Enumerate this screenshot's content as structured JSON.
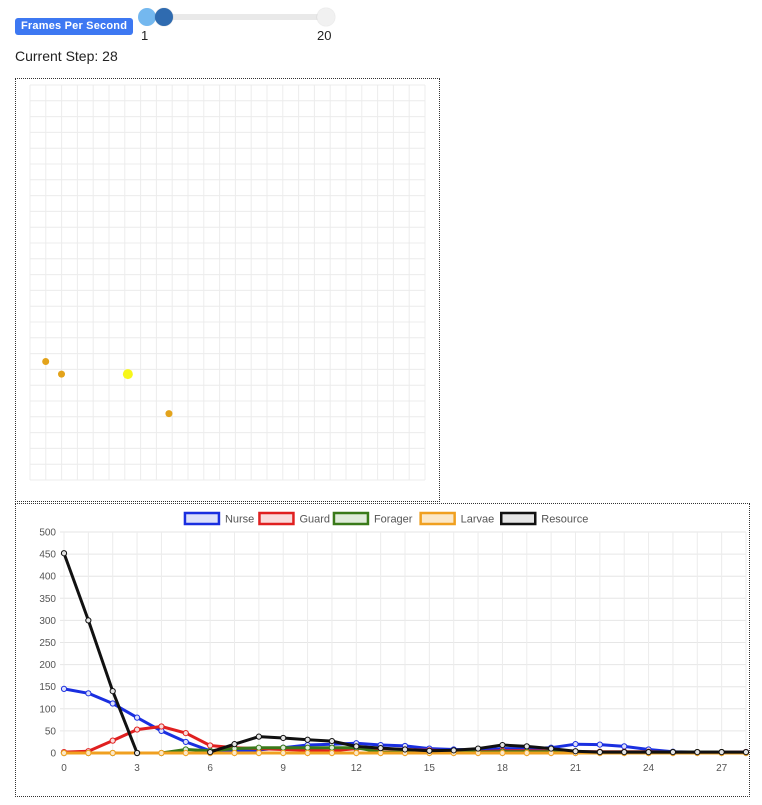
{
  "controls": {
    "fps_label": "Frames Per Second",
    "fps_min_label": "1",
    "fps_max_label": "20",
    "fps_min": 1,
    "fps_max": 20,
    "fps_value": 2,
    "step_label": "Current Step: 28"
  },
  "grid": {
    "cells": 25,
    "agents": [
      {
        "col": 1,
        "row": 17.5,
        "color": "#e3a31b",
        "role": "dot"
      },
      {
        "col": 2,
        "row": 18.3,
        "color": "#e3a31b",
        "role": "dot"
      },
      {
        "col": 6.2,
        "row": 18.3,
        "color": "#f7f71a",
        "role": "dot-large"
      },
      {
        "col": 8.8,
        "row": 20.8,
        "color": "#e3a31b",
        "role": "dot"
      }
    ]
  },
  "chart_data": {
    "type": "line",
    "x": [
      0,
      1,
      2,
      3,
      4,
      5,
      6,
      7,
      8,
      9,
      10,
      11,
      12,
      13,
      14,
      15,
      16,
      17,
      18,
      19,
      20,
      21,
      22,
      23,
      24,
      25,
      26,
      27,
      28
    ],
    "xticks": [
      0,
      3,
      6,
      9,
      12,
      15,
      18,
      21,
      24,
      27
    ],
    "ylim": [
      0,
      500
    ],
    "yticks": [
      0,
      50,
      100,
      150,
      200,
      250,
      300,
      350,
      400,
      450,
      500
    ],
    "grid": true,
    "legend": "top-center",
    "series": [
      {
        "name": "Nurse",
        "color": "#1a2fe0",
        "fill": "#dde0fa",
        "values": [
          145,
          135,
          112,
          80,
          50,
          25,
          5,
          5,
          7,
          12,
          18,
          20,
          22,
          18,
          16,
          10,
          8,
          7,
          10,
          10,
          12,
          20,
          19,
          15,
          8,
          3,
          2,
          2,
          2
        ]
      },
      {
        "name": "Guard",
        "color": "#e02020",
        "fill": "#f9dcdc",
        "values": [
          2,
          4,
          28,
          53,
          60,
          45,
          17,
          12,
          10,
          8,
          6,
          5,
          10,
          10,
          8,
          6,
          5,
          3,
          5,
          5,
          4,
          3,
          3,
          3,
          3,
          2,
          2,
          2,
          2
        ]
      },
      {
        "name": "Forager",
        "color": "#3a7a1a",
        "fill": "#e0ecda",
        "values": [
          0,
          0,
          0,
          0,
          0,
          8,
          5,
          10,
          12,
          12,
          12,
          12,
          12,
          2,
          2,
          4,
          4,
          2,
          3,
          3,
          3,
          3,
          2,
          2,
          2,
          2,
          2,
          2,
          1
        ]
      },
      {
        "name": "Larvae",
        "color": "#f0a020",
        "fill": "#fbe8c8",
        "values": [
          0,
          0,
          0,
          0,
          0,
          0,
          0,
          0,
          0,
          0,
          0,
          0,
          0,
          0,
          0,
          0,
          0,
          0,
          0,
          0,
          0,
          0,
          0,
          0,
          0,
          0,
          0,
          0,
          0
        ]
      },
      {
        "name": "Resource",
        "color": "#111111",
        "fill": "#e5e5e5",
        "values": [
          452,
          300,
          140,
          0,
          null,
          null,
          2,
          20,
          37,
          34,
          30,
          27,
          15,
          11,
          8,
          5,
          6,
          10,
          18,
          15,
          10,
          4,
          2,
          2,
          2,
          2,
          2,
          2,
          2
        ]
      }
    ]
  }
}
